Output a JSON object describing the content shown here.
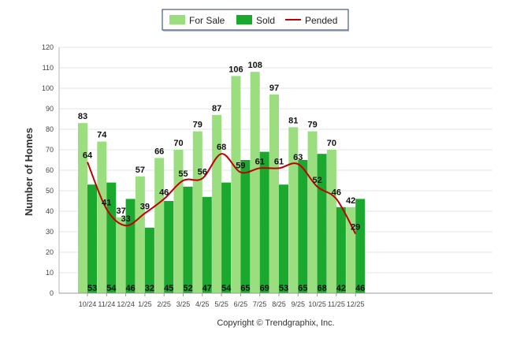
{
  "chart_data": {
    "type": "bar",
    "title": "",
    "xlabel": "",
    "ylabel": "Number of Homes",
    "ylim": [
      0,
      120
    ],
    "yticks": [
      0,
      10,
      20,
      30,
      40,
      50,
      60,
      70,
      80,
      90,
      100,
      110,
      120
    ],
    "grid": true,
    "legend_position": "top-center",
    "categories": [
      "10/24",
      "11/24",
      "12/24",
      "1/25",
      "2/25",
      "3/25",
      "4/25",
      "5/25",
      "6/25",
      "7/25",
      "8/25",
      "9/25",
      "10/25",
      "11/25",
      "12/25"
    ],
    "series": [
      {
        "name": "For Sale",
        "kind": "bar",
        "color": "#9ade7f",
        "values": [
          83,
          74,
          37,
          57,
          66,
          70,
          79,
          87,
          106,
          108,
          97,
          81,
          79,
          70,
          42
        ]
      },
      {
        "name": "Sold",
        "kind": "bar",
        "color": "#1aa82e",
        "values": [
          53,
          54,
          46,
          32,
          45,
          52,
          47,
          54,
          65,
          69,
          53,
          65,
          68,
          42,
          46
        ]
      },
      {
        "name": "Pended",
        "kind": "line",
        "color": "#c00000",
        "values": [
          64,
          41,
          33,
          39,
          46,
          55,
          56,
          68,
          59,
          61,
          61,
          63,
          52,
          46,
          29
        ]
      }
    ]
  },
  "footer": {
    "copyright": "Copyright © Trendgraphix, Inc."
  }
}
